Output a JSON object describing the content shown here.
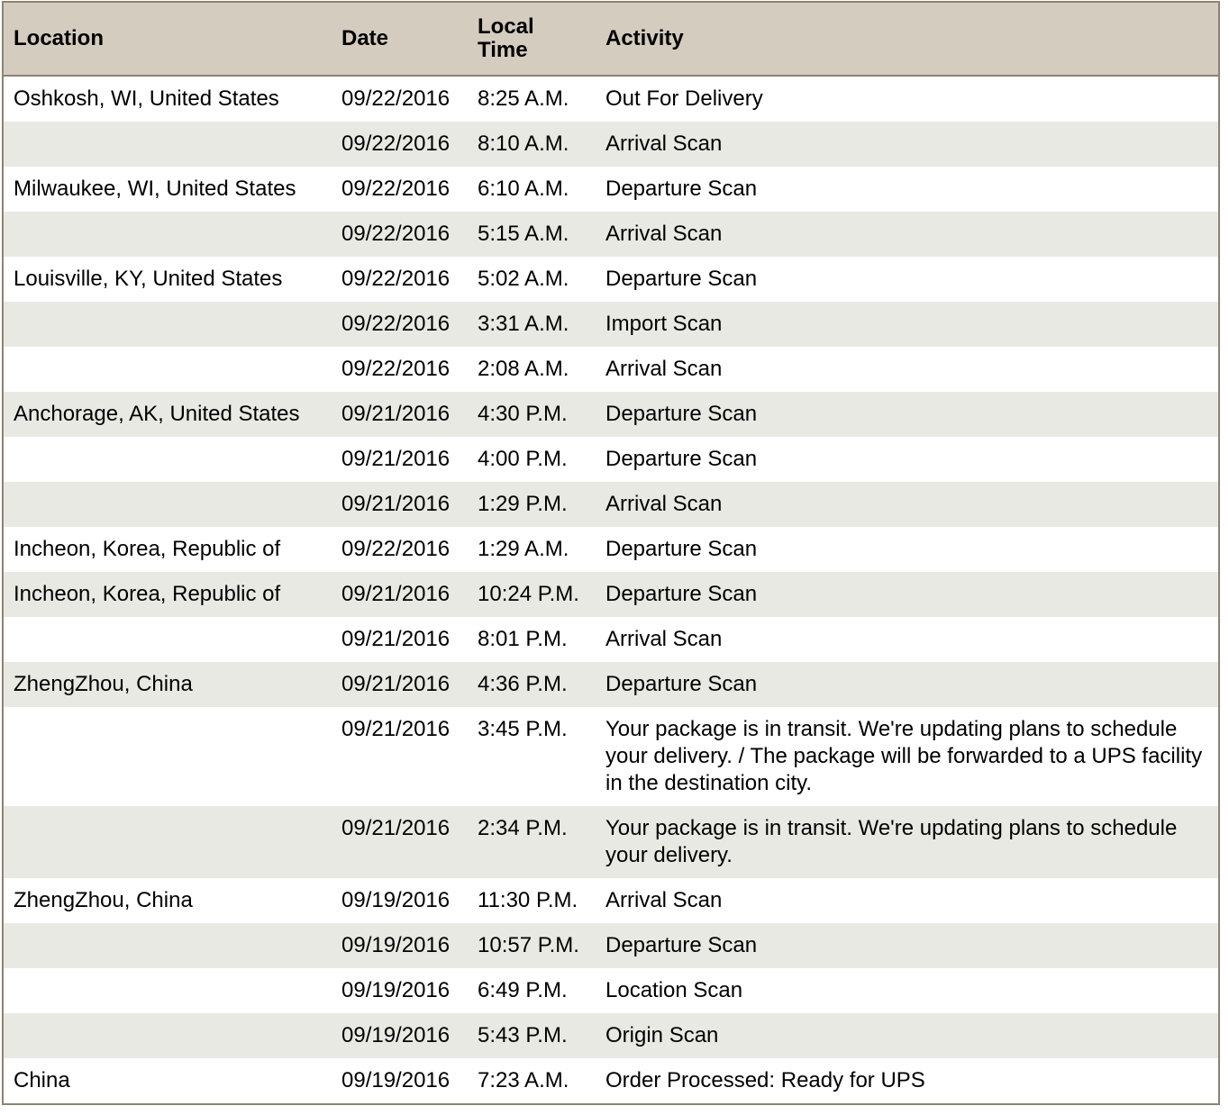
{
  "headers": {
    "location": "Location",
    "date": "Date",
    "time_line1": "Local",
    "time_line2": "Time",
    "activity": "Activity"
  },
  "colors": {
    "header_bg": "#d4ccbf",
    "stripe_bg": "#e9e9e4",
    "border": "#8b8373"
  },
  "rows": [
    {
      "location": "Oshkosh, WI, United States",
      "date": "09/22/2016",
      "time": "8:25 A.M.",
      "activity": "Out For Delivery"
    },
    {
      "location": "",
      "date": "09/22/2016",
      "time": "8:10 A.M.",
      "activity": "Arrival Scan"
    },
    {
      "location": "Milwaukee, WI, United States",
      "date": "09/22/2016",
      "time": "6:10 A.M.",
      "activity": "Departure Scan"
    },
    {
      "location": "",
      "date": "09/22/2016",
      "time": "5:15 A.M.",
      "activity": "Arrival Scan"
    },
    {
      "location": "Louisville, KY, United States",
      "date": "09/22/2016",
      "time": "5:02 A.M.",
      "activity": "Departure Scan"
    },
    {
      "location": "",
      "date": "09/22/2016",
      "time": "3:31 A.M.",
      "activity": "Import Scan"
    },
    {
      "location": "",
      "date": "09/22/2016",
      "time": "2:08 A.M.",
      "activity": "Arrival Scan"
    },
    {
      "location": "Anchorage, AK, United States",
      "date": "09/21/2016",
      "time": "4:30 P.M.",
      "activity": "Departure Scan"
    },
    {
      "location": "",
      "date": "09/21/2016",
      "time": "4:00 P.M.",
      "activity": "Departure Scan"
    },
    {
      "location": "",
      "date": "09/21/2016",
      "time": "1:29 P.M.",
      "activity": "Arrival Scan"
    },
    {
      "location": "Incheon, Korea, Republic of",
      "date": "09/22/2016",
      "time": "1:29 A.M.",
      "activity": "Departure Scan"
    },
    {
      "location": "Incheon, Korea, Republic of",
      "date": "09/21/2016",
      "time": "10:24 P.M.",
      "activity": "Departure Scan"
    },
    {
      "location": "",
      "date": "09/21/2016",
      "time": "8:01 P.M.",
      "activity": "Arrival Scan"
    },
    {
      "location": "ZhengZhou, China",
      "date": "09/21/2016",
      "time": "4:36 P.M.",
      "activity": "Departure Scan"
    },
    {
      "location": "",
      "date": "09/21/2016",
      "time": "3:45 P.M.",
      "activity": "Your package is in transit. We're updating plans to schedule your delivery. / The package will be forwarded to a UPS facility in the destination city."
    },
    {
      "location": "",
      "date": "09/21/2016",
      "time": "2:34 P.M.",
      "activity": "Your package is in transit. We're updating plans to schedule your delivery."
    },
    {
      "location": "ZhengZhou, China",
      "date": "09/19/2016",
      "time": "11:30 P.M.",
      "activity": "Arrival Scan"
    },
    {
      "location": "",
      "date": "09/19/2016",
      "time": "10:57 P.M.",
      "activity": "Departure Scan"
    },
    {
      "location": "",
      "date": "09/19/2016",
      "time": "6:49 P.M.",
      "activity": "Location Scan"
    },
    {
      "location": "",
      "date": "09/19/2016",
      "time": "5:43 P.M.",
      "activity": "Origin Scan"
    },
    {
      "location": "China",
      "date": "09/19/2016",
      "time": "7:23 A.M.",
      "activity": "Order Processed: Ready for UPS"
    }
  ]
}
